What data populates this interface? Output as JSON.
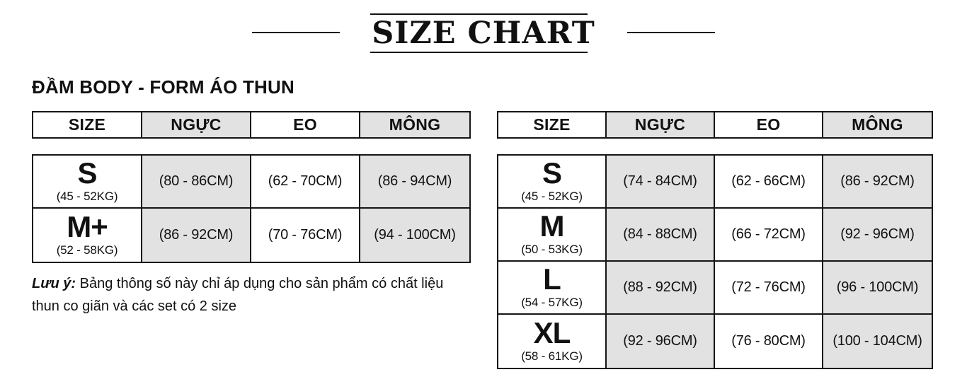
{
  "title": "SIZE CHART",
  "heading": "ĐẦM BODY - FORM ÁO THUN",
  "note": {
    "label": "Lưu ý:",
    "text": "Bảng thông số này chỉ áp dụng cho sản phẩm có chất liệu thun co giãn và các set có 2 size"
  },
  "colors": {
    "cell_gray": "#e2e2e2",
    "border": "#151515",
    "text": "#111111"
  },
  "tables": [
    {
      "headers": [
        "SIZE",
        "NGỰC",
        "EO",
        "MÔNG"
      ],
      "rows": [
        {
          "size": "S",
          "weight": "(45 - 52KG)",
          "bust": "(80 - 86CM)",
          "waist": "(62 - 70CM)",
          "hip": "(86 - 94CM)"
        },
        {
          "size": "M+",
          "weight": "(52 - 58KG)",
          "bust": "(86 - 92CM)",
          "waist": "(70 - 76CM)",
          "hip": "(94 - 100CM)"
        }
      ]
    },
    {
      "headers": [
        "SIZE",
        "NGỰC",
        "EO",
        "MÔNG"
      ],
      "rows": [
        {
          "size": "S",
          "weight": "(45 - 52KG)",
          "bust": "(74 - 84CM)",
          "waist": "(62 - 66CM)",
          "hip": "(86 - 92CM)"
        },
        {
          "size": "M",
          "weight": "(50 - 53KG)",
          "bust": "(84 - 88CM)",
          "waist": "(66 - 72CM)",
          "hip": "(92 - 96CM)"
        },
        {
          "size": "L",
          "weight": "(54 - 57KG)",
          "bust": "(88 - 92CM)",
          "waist": "(72 - 76CM)",
          "hip": "(96 - 100CM)"
        },
        {
          "size": "XL",
          "weight": "(58 - 61KG)",
          "bust": "(92 - 96CM)",
          "waist": "(76 - 80CM)",
          "hip": "(100 - 104CM)"
        }
      ]
    }
  ],
  "chart_data": [
    {
      "type": "table",
      "title": "ĐẦM BODY - FORM ÁO THUN",
      "columns": [
        "SIZE",
        "NGỰC",
        "EO",
        "MÔNG"
      ],
      "rows": [
        [
          "S (45 - 52KG)",
          "(80 - 86CM)",
          "(62 - 70CM)",
          "(86 - 94CM)"
        ],
        [
          "M+ (52 - 58KG)",
          "(86 - 92CM)",
          "(70 - 76CM)",
          "(94 - 100CM)"
        ]
      ]
    },
    {
      "type": "table",
      "title": "SIZE CHART (right table)",
      "columns": [
        "SIZE",
        "NGỰC",
        "EO",
        "MÔNG"
      ],
      "rows": [
        [
          "S (45 - 52KG)",
          "(74 - 84CM)",
          "(62 - 66CM)",
          "(86 - 92CM)"
        ],
        [
          "M (50 - 53KG)",
          "(84 - 88CM)",
          "(66 - 72CM)",
          "(92 - 96CM)"
        ],
        [
          "L (54 - 57KG)",
          "(88 - 92CM)",
          "(72 - 76CM)",
          "(96 - 100CM)"
        ],
        [
          "XL (58 - 61KG)",
          "(92 - 96CM)",
          "(76 - 80CM)",
          "(100 - 104CM)"
        ]
      ]
    }
  ]
}
